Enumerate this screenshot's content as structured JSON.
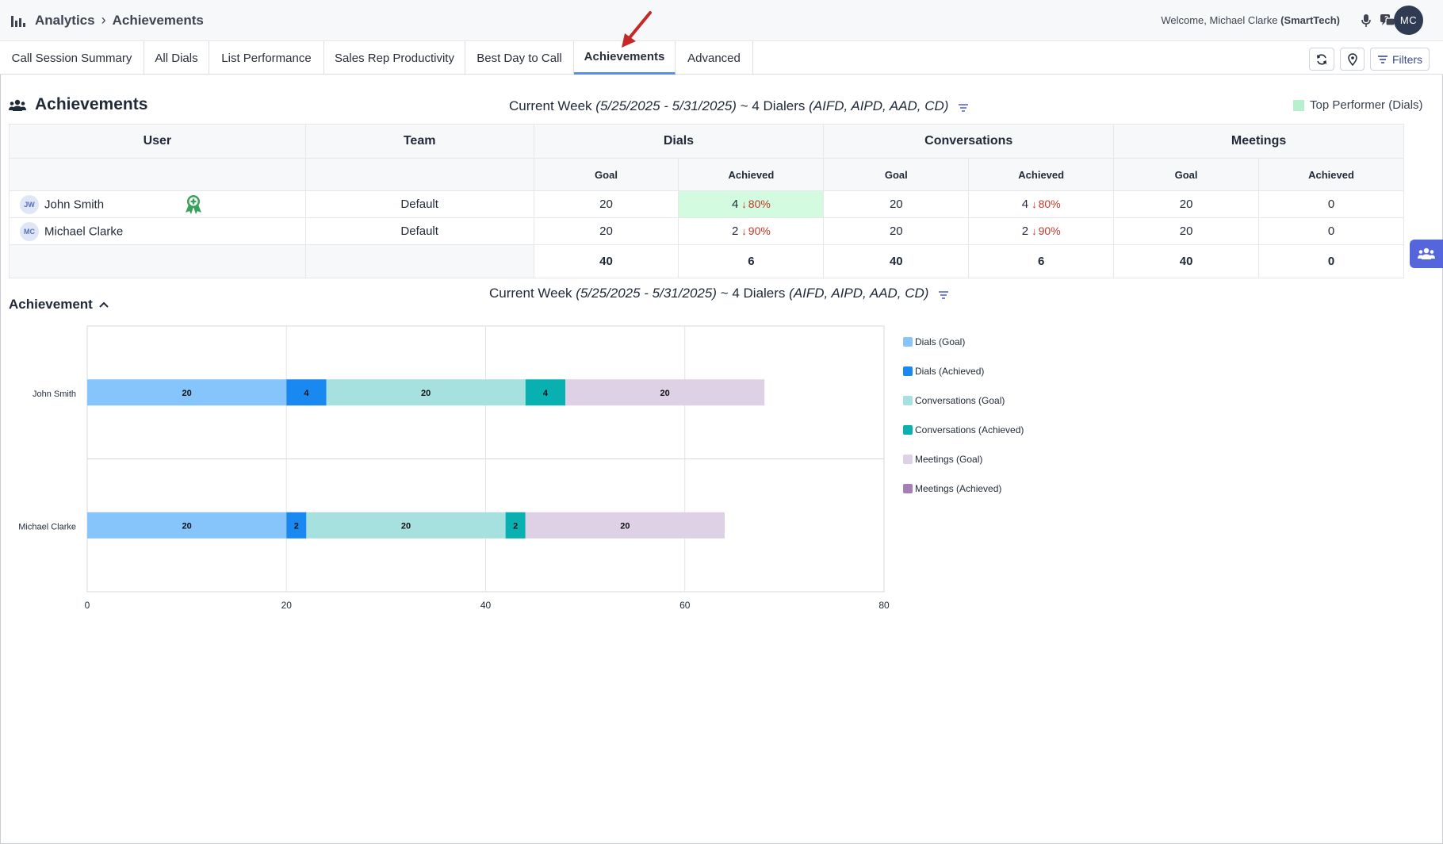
{
  "breadcrumb": {
    "root": "Analytics",
    "current": "Achievements"
  },
  "header": {
    "welcome_prefix": "Welcome, ",
    "user_name": "Michael Clarke",
    "company": "(SmartTech)",
    "avatar_initials": "MC"
  },
  "tabs": [
    {
      "label": "Call Session Summary",
      "active": false
    },
    {
      "label": "All Dials",
      "active": false
    },
    {
      "label": "List Performance",
      "active": false
    },
    {
      "label": "Sales Rep Productivity",
      "active": false
    },
    {
      "label": "Best Day to Call",
      "active": false
    },
    {
      "label": "Achievements",
      "active": true
    },
    {
      "label": "Advanced",
      "active": false
    }
  ],
  "toolbar": {
    "filters_label": "Filters"
  },
  "section": {
    "title": "Achievements",
    "period_prefix": "Current Week ",
    "period_range": "(5/25/2025 - 5/31/2025)",
    "period_mid": " ~ 4 Dialers ",
    "period_dialers": "(AIFD, AIPD, AAD, CD)",
    "legend_label": "Top Performer (Dials)"
  },
  "table": {
    "headers": {
      "user": "User",
      "team": "Team",
      "dials": "Dials",
      "conversations": "Conversations",
      "meetings": "Meetings",
      "goal": "Goal",
      "achieved": "Achieved"
    },
    "rows": [
      {
        "initials": "JW",
        "name": "John Smith",
        "team": "Default",
        "top_performer": true,
        "dials_goal": "20",
        "dials_achieved": "4",
        "dials_change": "80%",
        "conv_goal": "20",
        "conv_achieved": "4",
        "conv_change": "80%",
        "meet_goal": "20",
        "meet_achieved": "0"
      },
      {
        "initials": "MC",
        "name": "Michael Clarke",
        "team": "Default",
        "top_performer": false,
        "dials_goal": "20",
        "dials_achieved": "2",
        "dials_change": "90%",
        "conv_goal": "20",
        "conv_achieved": "2",
        "conv_change": "90%",
        "meet_goal": "20",
        "meet_achieved": "0"
      }
    ],
    "totals": {
      "dials_goal": "40",
      "dials_achieved": "6",
      "conv_goal": "40",
      "conv_achieved": "6",
      "meet_goal": "40",
      "meet_achieved": "0"
    }
  },
  "chart_section": {
    "label": "Achievement"
  },
  "chart_data": {
    "type": "bar",
    "orientation": "horizontal",
    "stacked": true,
    "categories": [
      "John Smith",
      "Michael Clarke"
    ],
    "series": [
      {
        "name": "Dials (Goal)",
        "values": [
          20,
          20
        ],
        "color": "#85c5fb"
      },
      {
        "name": "Dials (Achieved)",
        "values": [
          4,
          2
        ],
        "color": "#1a88f1"
      },
      {
        "name": "Conversations (Goal)",
        "values": [
          20,
          20
        ],
        "color": "#a6e1e0"
      },
      {
        "name": "Conversations (Achieved)",
        "values": [
          4,
          2
        ],
        "color": "#08b0b1"
      },
      {
        "name": "Meetings (Goal)",
        "values": [
          20,
          20
        ],
        "color": "#ded1e6"
      },
      {
        "name": "Meetings (Achieved)",
        "values": [
          0,
          0
        ],
        "color": "#a47eb5"
      }
    ],
    "xlim": [
      0,
      80
    ],
    "xticks": [
      0,
      20,
      40,
      60,
      80
    ],
    "grid": true,
    "legend_position": "right"
  }
}
